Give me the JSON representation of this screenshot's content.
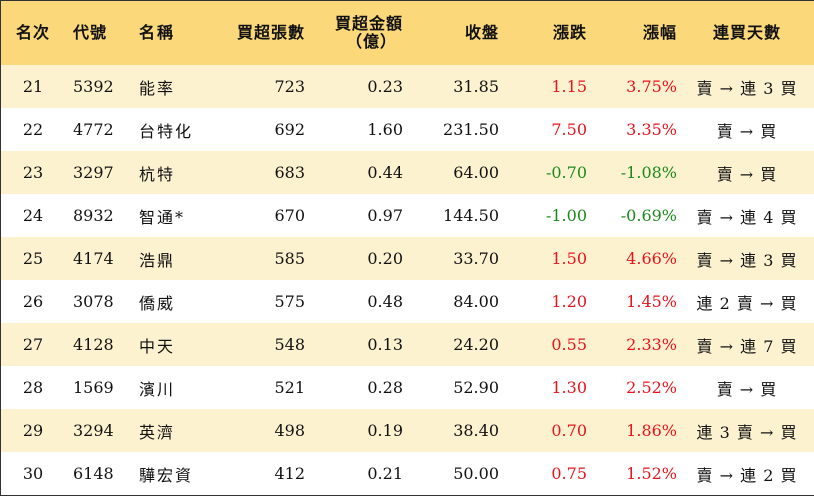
{
  "headers": {
    "rank": "名次",
    "code": "代號",
    "name": "名稱",
    "net_buy_lots": "買超張數",
    "net_buy_amount_line1": "買超金額",
    "net_buy_amount_line2": "（億）",
    "close": "收盤",
    "change": "漲跌",
    "change_pct": "漲幅",
    "consecutive_days": "連買天數"
  },
  "colors": {
    "header_bg": "#fbd97a",
    "odd_row_bg": "#fdf2d0",
    "up": "#e8131c",
    "down": "#1b8a1b"
  },
  "rows": [
    {
      "rank": "21",
      "code": "5392",
      "name": "能率",
      "net_buy_lots": "723",
      "net_buy_amount": "0.23",
      "close": "31.85",
      "change": "1.15",
      "change_pct": "3.75%",
      "trend": "up",
      "consecutive_days": "賣 → 連 3 買"
    },
    {
      "rank": "22",
      "code": "4772",
      "name": "台特化",
      "net_buy_lots": "692",
      "net_buy_amount": "1.60",
      "close": "231.50",
      "change": "7.50",
      "change_pct": "3.35%",
      "trend": "up",
      "consecutive_days": "賣 → 買"
    },
    {
      "rank": "23",
      "code": "3297",
      "name": "杭特",
      "net_buy_lots": "683",
      "net_buy_amount": "0.44",
      "close": "64.00",
      "change": "-0.70",
      "change_pct": "-1.08%",
      "trend": "down",
      "consecutive_days": "賣 → 買"
    },
    {
      "rank": "24",
      "code": "8932",
      "name": "智通*",
      "net_buy_lots": "670",
      "net_buy_amount": "0.97",
      "close": "144.50",
      "change": "-1.00",
      "change_pct": "-0.69%",
      "trend": "down",
      "consecutive_days": "賣 → 連 4 買"
    },
    {
      "rank": "25",
      "code": "4174",
      "name": "浩鼎",
      "net_buy_lots": "585",
      "net_buy_amount": "0.20",
      "close": "33.70",
      "change": "1.50",
      "change_pct": "4.66%",
      "trend": "up",
      "consecutive_days": "賣 → 連 3 買"
    },
    {
      "rank": "26",
      "code": "3078",
      "name": "僑威",
      "net_buy_lots": "575",
      "net_buy_amount": "0.48",
      "close": "84.00",
      "change": "1.20",
      "change_pct": "1.45%",
      "trend": "up",
      "consecutive_days": "連 2 賣 → 買"
    },
    {
      "rank": "27",
      "code": "4128",
      "name": "中天",
      "net_buy_lots": "548",
      "net_buy_amount": "0.13",
      "close": "24.20",
      "change": "0.55",
      "change_pct": "2.33%",
      "trend": "up",
      "consecutive_days": "賣 → 連 7 買"
    },
    {
      "rank": "28",
      "code": "1569",
      "name": "濱川",
      "net_buy_lots": "521",
      "net_buy_amount": "0.28",
      "close": "52.90",
      "change": "1.30",
      "change_pct": "2.52%",
      "trend": "up",
      "consecutive_days": "賣 → 買"
    },
    {
      "rank": "29",
      "code": "3294",
      "name": "英濟",
      "net_buy_lots": "498",
      "net_buy_amount": "0.19",
      "close": "38.40",
      "change": "0.70",
      "change_pct": "1.86%",
      "trend": "up",
      "consecutive_days": "連 3 賣 → 買"
    },
    {
      "rank": "30",
      "code": "6148",
      "name": "驊宏資",
      "net_buy_lots": "412",
      "net_buy_amount": "0.21",
      "close": "50.00",
      "change": "0.75",
      "change_pct": "1.52%",
      "trend": "up",
      "consecutive_days": "賣 → 連 2 買"
    }
  ]
}
